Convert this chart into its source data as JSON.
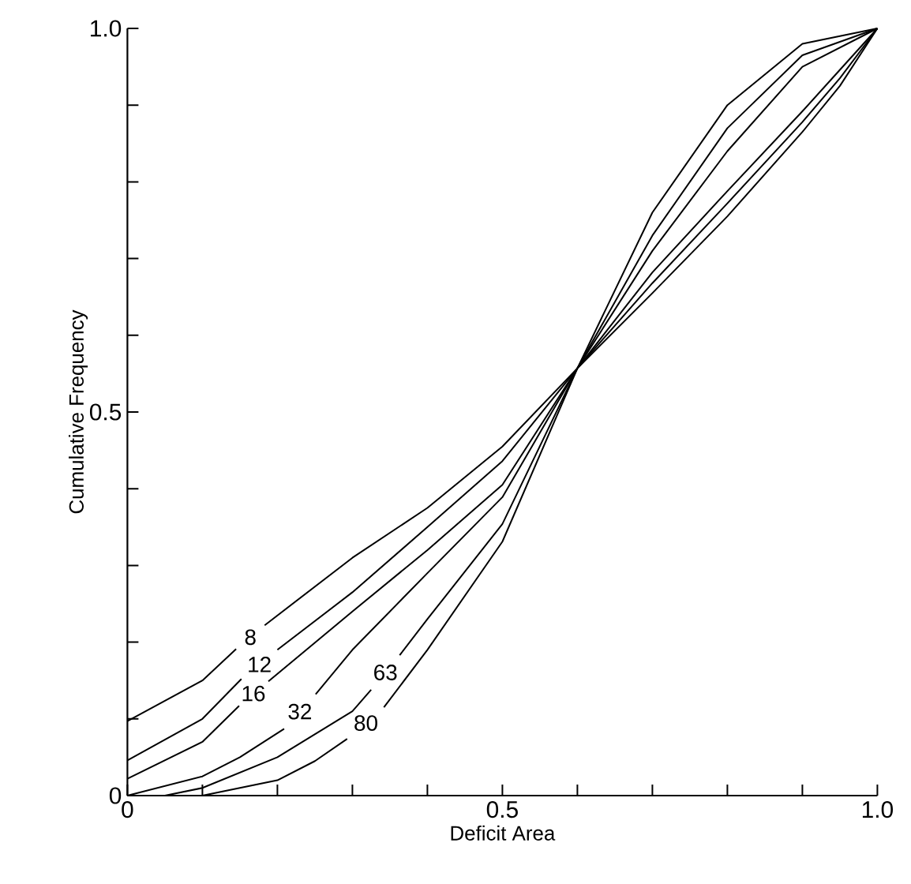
{
  "chart_data": {
    "type": "line",
    "xlabel": "Deficit Area",
    "ylabel": "Cumulative Frequency",
    "xlim": [
      0,
      1
    ],
    "ylim": [
      0,
      1
    ],
    "xticks": [
      0,
      {
        "value": 0.1,
        "label": null
      },
      {
        "value": 0.2,
        "label": null
      },
      {
        "value": 0.3,
        "label": null
      },
      {
        "value": 0.4,
        "label": null
      },
      0.5,
      {
        "value": 0.6,
        "label": null
      },
      {
        "value": 0.7,
        "label": null
      },
      {
        "value": 0.8,
        "label": null
      },
      {
        "value": 0.9,
        "label": null
      },
      {
        "value": 1,
        "label": "1.0"
      }
    ],
    "yticks": [
      0,
      {
        "value": 0.1,
        "label": null
      },
      {
        "value": 0.2,
        "label": null
      },
      {
        "value": 0.3,
        "label": null
      },
      {
        "value": 0.4,
        "label": null
      },
      0.5,
      {
        "value": 0.6,
        "label": null
      },
      {
        "value": 0.7,
        "label": null
      },
      {
        "value": 0.8,
        "label": null
      },
      {
        "value": 0.9,
        "label": null
      },
      {
        "value": 1,
        "label": "1.0"
      }
    ],
    "marker": "none",
    "line_style": "solid",
    "series": [
      {
        "name": "8",
        "color": "#000000",
        "x": [
          0,
          0.1,
          0.145,
          0.164,
          0.183,
          0.3,
          0.4,
          0.5,
          0.6,
          0.7,
          0.8,
          0.9,
          0.95,
          1
        ],
        "values": [
          0.097,
          0.15,
          0.191,
          null,
          0.222,
          0.31,
          0.375,
          0.455,
          0.557,
          0.655,
          0.755,
          0.865,
          0.925,
          1
        ]
      },
      {
        "name": "12",
        "color": "#000000",
        "x": [
          0,
          0.1,
          0.152,
          0.176,
          0.2,
          0.3,
          0.4,
          0.5,
          0.6,
          0.7,
          0.8,
          0.9,
          0.95,
          1
        ],
        "values": [
          0.046,
          0.1,
          0.152,
          null,
          0.19,
          0.265,
          0.35,
          0.436,
          0.557,
          0.668,
          0.772,
          0.878,
          0.935,
          1
        ]
      },
      {
        "name": "16",
        "color": "#000000",
        "x": [
          0,
          0.1,
          0.149,
          0.168,
          0.188,
          0.3,
          0.4,
          0.5,
          0.6,
          0.7,
          0.8,
          0.9,
          0.95,
          1
        ],
        "values": [
          0.022,
          0.07,
          0.117,
          null,
          0.149,
          0.24,
          0.32,
          0.405,
          0.557,
          0.682,
          0.788,
          0.892,
          0.946,
          1
        ]
      },
      {
        "name": "32",
        "color": "#000000",
        "x": [
          0,
          0.1,
          0.15,
          0.209,
          0.23,
          0.251,
          0.3,
          0.4,
          0.5,
          0.6,
          0.7,
          0.8,
          0.9,
          1
        ],
        "values": [
          0,
          0.025,
          0.05,
          0.087,
          null,
          0.132,
          0.19,
          0.29,
          0.389,
          0.557,
          0.71,
          0.84,
          0.95,
          1
        ]
      },
      {
        "name": "63",
        "color": "#000000",
        "x": [
          0.05,
          0.1,
          0.2,
          0.3,
          0.325,
          0.344,
          0.363,
          0.4,
          0.5,
          0.6,
          0.7,
          0.8,
          0.9,
          1
        ],
        "values": [
          0,
          0.01,
          0.05,
          0.11,
          0.138,
          null,
          0.183,
          0.23,
          0.354,
          0.557,
          0.73,
          0.87,
          0.965,
          1
        ]
      },
      {
        "name": "80",
        "color": "#000000",
        "x": [
          0.1,
          0.2,
          0.25,
          0.293,
          0.318,
          0.342,
          0.4,
          0.5,
          0.6,
          0.7,
          0.8,
          0.9,
          1
        ],
        "values": [
          0,
          0.02,
          0.045,
          0.074,
          null,
          0.115,
          0.19,
          0.331,
          0.557,
          0.76,
          0.9,
          0.98,
          1
        ]
      }
    ]
  }
}
